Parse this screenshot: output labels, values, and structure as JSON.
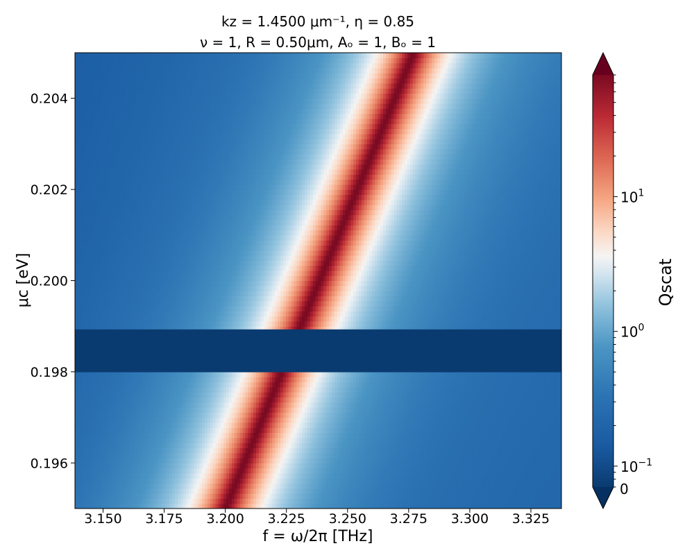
{
  "chart_data": {
    "type": "heatmap",
    "title_line1": "kz = 1.4500 μm⁻¹, η = 0.85",
    "title_line2": "ν = 1, R = 0.50μm, Aₒ = 1, Bₒ = 1",
    "xlabel": "f = ω/2π [THz]",
    "ylabel": "μc [eV]",
    "xlim": [
      3.1385,
      3.3375
    ],
    "ylim": [
      0.195,
      0.205
    ],
    "x_ticks": [
      "3.150",
      "3.175",
      "3.200",
      "3.225",
      "3.250",
      "3.275",
      "3.300",
      "3.325"
    ],
    "x_tick_values": [
      3.15,
      3.175,
      3.2,
      3.225,
      3.25,
      3.275,
      3.3,
      3.325
    ],
    "y_ticks": [
      "0.196",
      "0.198",
      "0.200",
      "0.202",
      "0.204"
    ],
    "y_tick_values": [
      0.196,
      0.198,
      0.2,
      0.202,
      0.204
    ],
    "colorbar": {
      "label": "Qscat",
      "scale": "log",
      "colormap": "RdBu_r",
      "vmin": 0.07,
      "vmax": 80,
      "extend": "both",
      "ticks": [
        {
          "base": "10",
          "exp": "−1",
          "value": 0.1
        },
        {
          "base": "10",
          "exp": "0",
          "value": 1
        },
        {
          "base": "10",
          "exp": "1",
          "value": 10
        }
      ],
      "extra_tick": {
        "label": "0"
      }
    },
    "resonance": {
      "points": [
        [
          3.2,
          0.195
        ],
        [
          3.277,
          0.205
        ]
      ],
      "peak_value": 80,
      "background_value": 0.15,
      "width_thz": 0.008
    },
    "gap_band": {
      "ylim": [
        0.19799,
        0.19893
      ],
      "value": 0.07
    }
  }
}
